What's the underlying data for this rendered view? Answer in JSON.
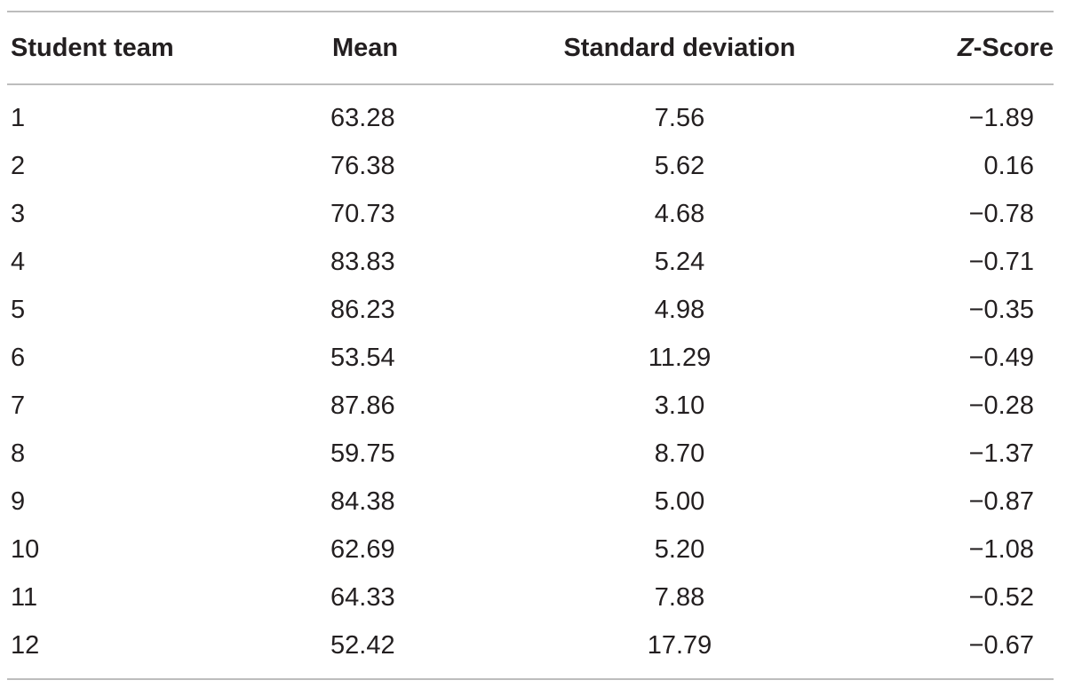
{
  "table": {
    "headers": {
      "team": "Student team",
      "mean": "Mean",
      "sd": "Standard deviation",
      "z_italic": "Z",
      "z_rest": "-Score"
    },
    "rows": [
      {
        "team": "1",
        "mean": "63.28",
        "sd": "7.56",
        "z": "−1.89"
      },
      {
        "team": "2",
        "mean": "76.38",
        "sd": "5.62",
        "z": "0.16"
      },
      {
        "team": "3",
        "mean": "70.73",
        "sd": "4.68",
        "z": "−0.78"
      },
      {
        "team": "4",
        "mean": "83.83",
        "sd": "5.24",
        "z": "−0.71"
      },
      {
        "team": "5",
        "mean": "86.23",
        "sd": "4.98",
        "z": "−0.35"
      },
      {
        "team": "6",
        "mean": "53.54",
        "sd": "11.29",
        "z": "−0.49"
      },
      {
        "team": "7",
        "mean": "87.86",
        "sd": "3.10",
        "z": "−0.28"
      },
      {
        "team": "8",
        "mean": "59.75",
        "sd": "8.70",
        "z": "−1.37"
      },
      {
        "team": "9",
        "mean": "84.38",
        "sd": "5.00",
        "z": "−0.87"
      },
      {
        "team": "10",
        "mean": "62.69",
        "sd": "5.20",
        "z": "−1.08"
      },
      {
        "team": "11",
        "mean": "64.33",
        "sd": "7.88",
        "z": "−0.52"
      },
      {
        "team": "12",
        "mean": "52.42",
        "sd": "17.79",
        "z": "−0.67"
      }
    ]
  }
}
